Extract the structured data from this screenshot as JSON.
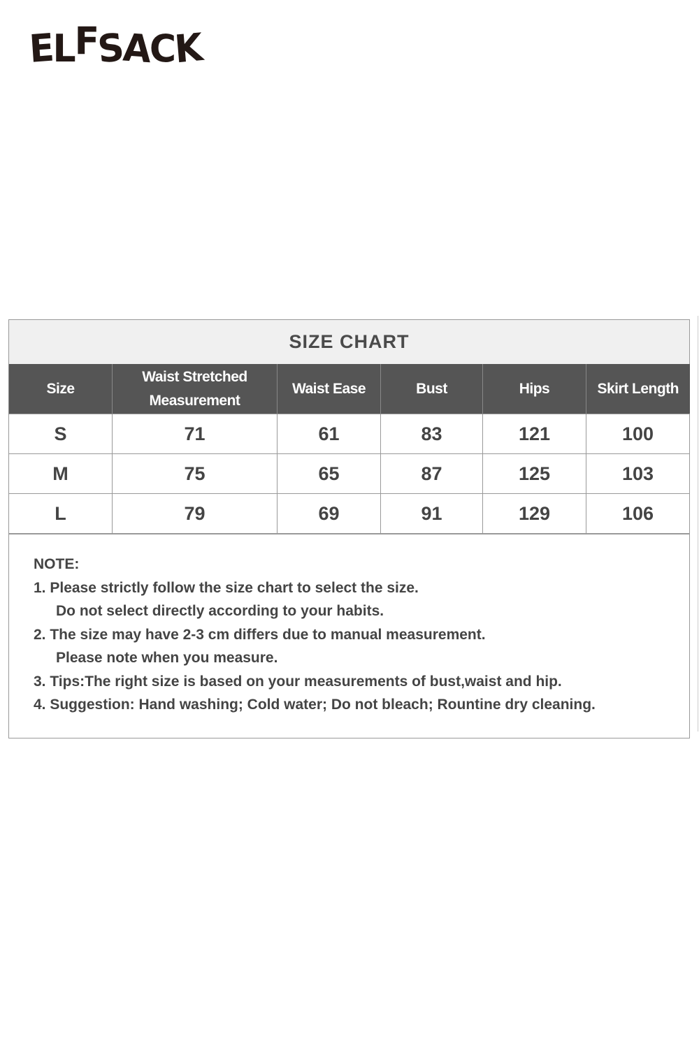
{
  "brand": {
    "logo": "ELFSACK"
  },
  "size_chart": {
    "title": "SIZE CHART",
    "columns": [
      "Size",
      "Waist Stretched Measurement",
      "Waist Ease",
      "Bust",
      "Hips",
      "Skirt Length"
    ],
    "rows": [
      [
        "S",
        "71",
        "61",
        "83",
        "121",
        "100"
      ],
      [
        "M",
        "75",
        "65",
        "87",
        "125",
        "103"
      ],
      [
        "L",
        "79",
        "69",
        "91",
        "129",
        "106"
      ]
    ]
  },
  "notes": {
    "heading": "NOTE:",
    "lines": [
      "1. Please strictly follow the size chart to select the size.",
      "Do not select directly according to your habits.",
      "2. The size may have 2-3 cm differs due to manual measurement.",
      "Please note when you measure.",
      "3. Tips:The right size is based on your measurements of bust,waist and hip.",
      "4. Suggestion: Hand washing; Cold water; Do not bleach; Rountine dry cleaning."
    ]
  }
}
